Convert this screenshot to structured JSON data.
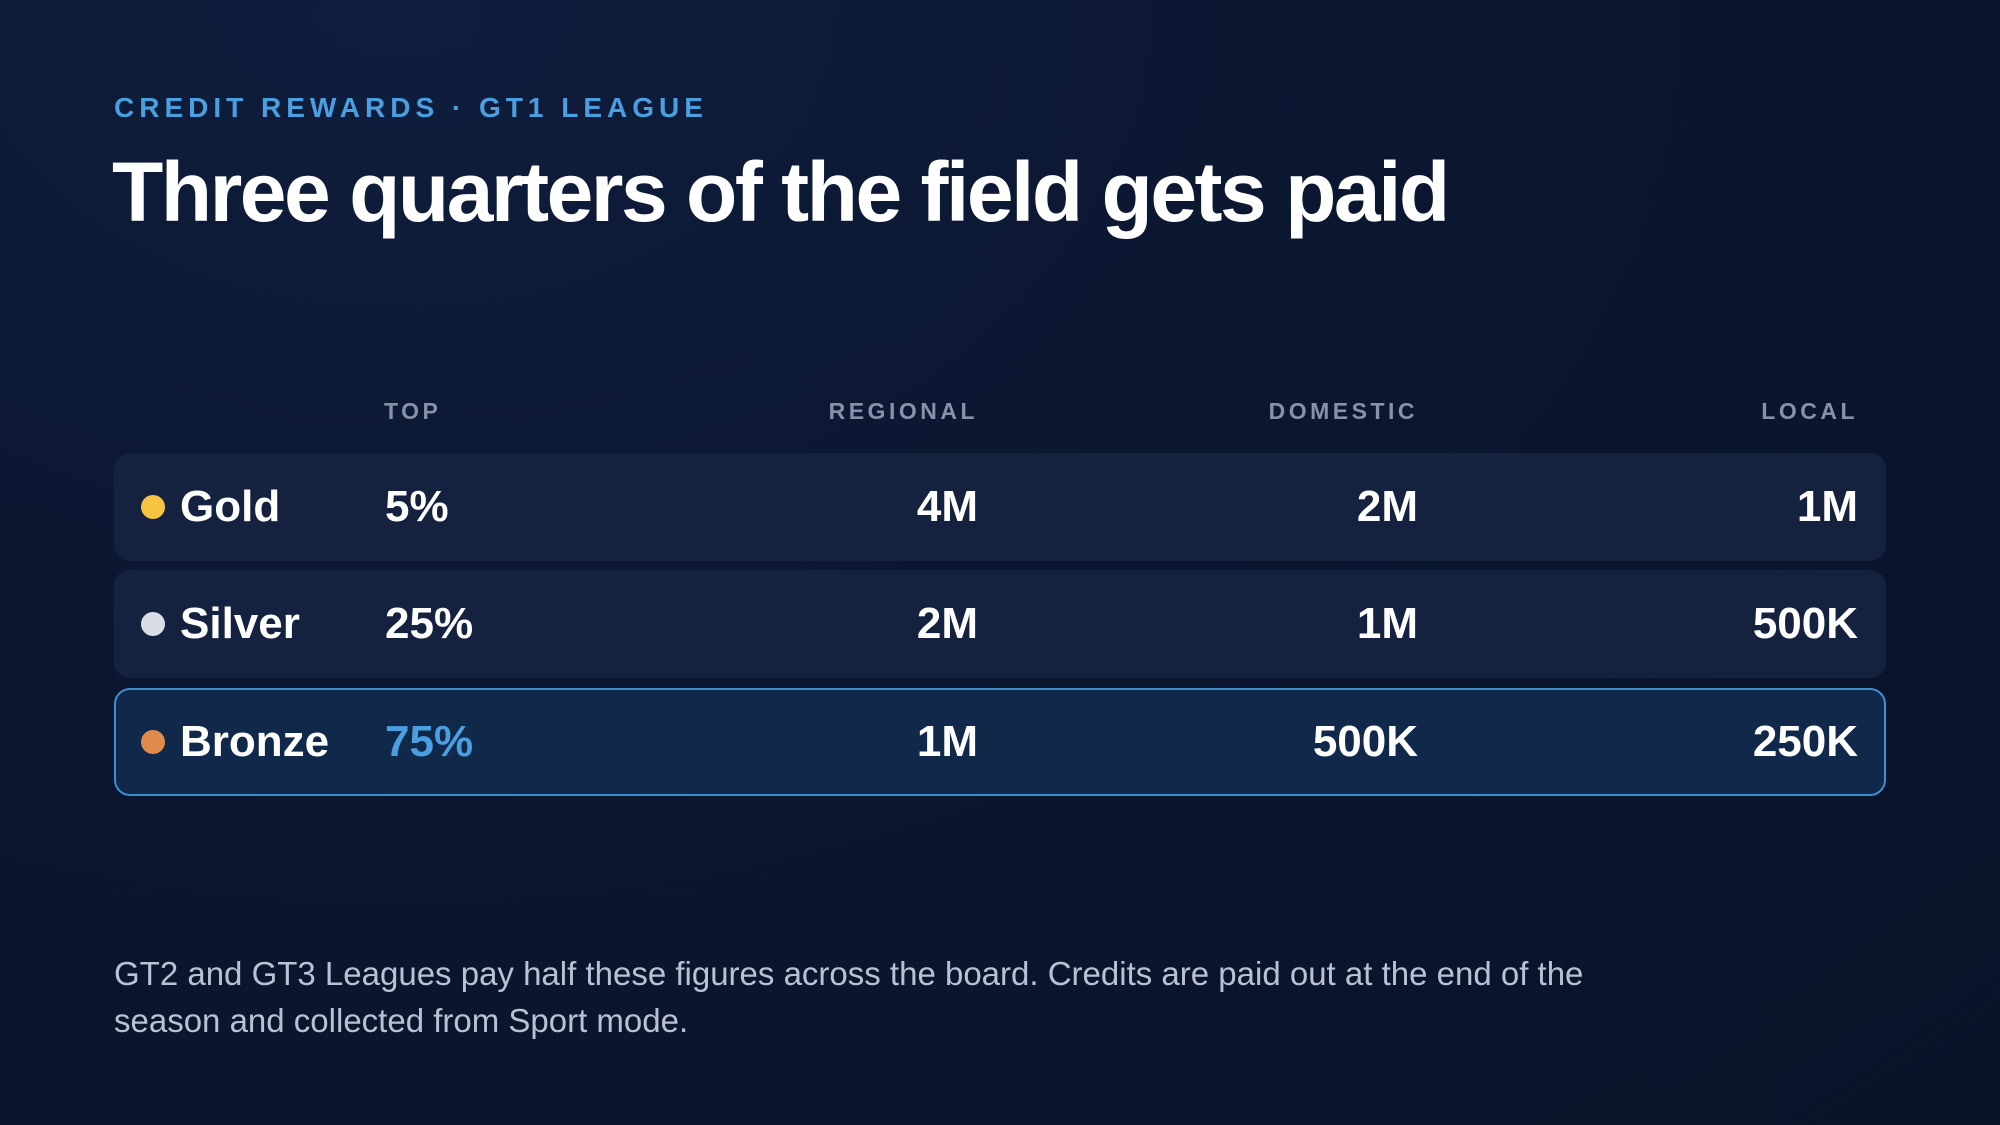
{
  "header": {
    "eyebrow": "CREDIT REWARDS · GT1 LEAGUE",
    "title": "Three quarters of the field gets paid"
  },
  "table": {
    "columns": [
      "TOP",
      "REGIONAL",
      "DOMESTIC",
      "LOCAL"
    ],
    "rows": [
      {
        "tier": "Gold",
        "dot_color": "#f6c343",
        "top": "5%",
        "regional": "4M",
        "domestic": "2M",
        "local": "1M",
        "highlighted": false
      },
      {
        "tier": "Silver",
        "dot_color": "#d9dde6",
        "top": "25%",
        "regional": "2M",
        "domestic": "1M",
        "local": "500K",
        "highlighted": false
      },
      {
        "tier": "Bronze",
        "dot_color": "#e08c4a",
        "top": "75%",
        "regional": "1M",
        "domestic": "500K",
        "local": "250K",
        "highlighted": true
      }
    ]
  },
  "colors": {
    "accent": "#4a9fe0",
    "highlight_border": "#3d8fd0"
  },
  "footnote": "GT2 and GT3 Leagues pay half these figures across the board. Credits are paid out at the end of the season and collected from Sport mode."
}
